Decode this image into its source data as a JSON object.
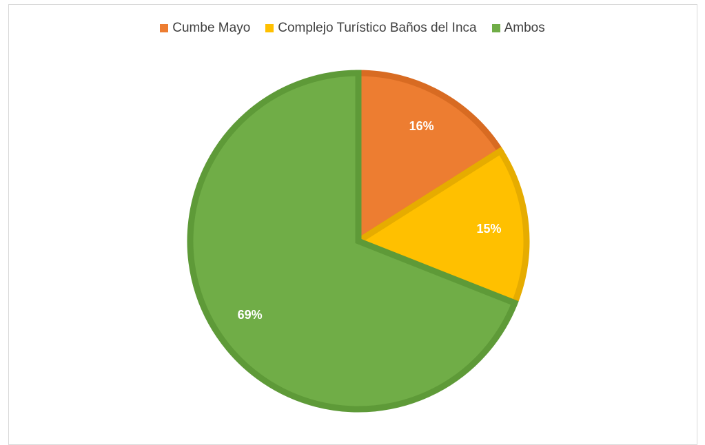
{
  "chart_data": {
    "type": "pie",
    "categories": [
      "Cumbe Mayo",
      "Complejo Turístico Baños del Inca",
      "Ambos"
    ],
    "values": [
      16,
      15,
      69
    ],
    "data_labels": [
      "16%",
      "15%",
      "69%"
    ],
    "colors": [
      "#ED7D31",
      "#FFC000",
      "#70AD47"
    ],
    "border_colors": [
      "#D86B22",
      "#E6AC00",
      "#5E9A38"
    ],
    "legend_position": "top",
    "start_angle": "12 o'clock, clockwise"
  }
}
